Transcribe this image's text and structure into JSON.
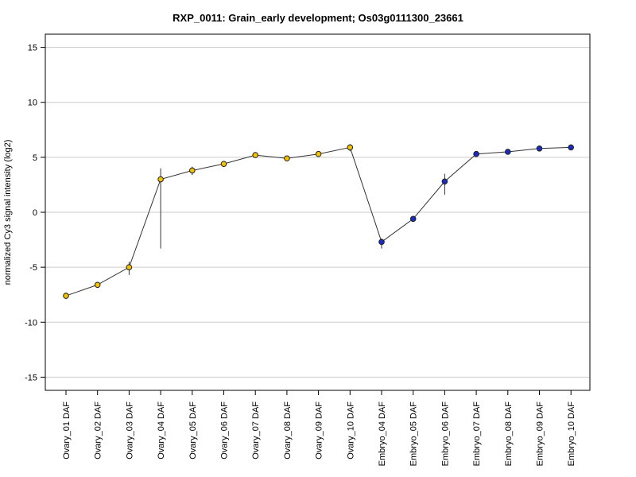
{
  "chart_data": {
    "type": "line",
    "title": "RXP_0011: Grain_early development; Os03g0111300_23661",
    "xlabel": "",
    "ylabel": "normalized Cy3 signal intensity (log2)",
    "ylim": [
      -16.2,
      16.2
    ],
    "yticks": [
      -15,
      -10,
      -5,
      0,
      5,
      10,
      15
    ],
    "grid": true,
    "categories": [
      "Ovary_01 DAF",
      "Ovary_02 DAF",
      "Ovary_03 DAF",
      "Ovary_04 DAF",
      "Ovary_05 DAF",
      "Ovary_06 DAF",
      "Ovary_07 DAF",
      "Ovary_08 DAF",
      "Ovary_09 DAF",
      "Ovary_10 DAF",
      "Embryo_04 DAF",
      "Embryo_05 DAF",
      "Embryo_06 DAF",
      "Embryo_07 DAF",
      "Embryo_08 DAF",
      "Embryo_09 DAF",
      "Embryo_10 DAF"
    ],
    "values": [
      -7.6,
      -6.6,
      -5.0,
      3.0,
      3.8,
      4.4,
      5.2,
      4.9,
      5.3,
      5.9,
      -2.7,
      -0.6,
      2.8,
      5.3,
      5.5,
      5.8,
      5.9
    ],
    "error_low": [
      -7.9,
      -6.8,
      -5.7,
      -3.3,
      3.4,
      4.2,
      4.95,
      4.7,
      5.1,
      5.55,
      -3.3,
      -0.75,
      1.6,
      5.2,
      5.4,
      5.65,
      5.75
    ],
    "error_high": [
      -7.3,
      -6.4,
      -4.5,
      4.0,
      4.15,
      4.6,
      5.4,
      5.1,
      5.5,
      6.2,
      -2.4,
      -0.45,
      3.5,
      5.4,
      5.6,
      5.9,
      6.05
    ],
    "point_colors": [
      "#f2c100",
      "#f2c100",
      "#f2c100",
      "#f2c100",
      "#f2c100",
      "#f2c100",
      "#f2c100",
      "#f2c100",
      "#f2c100",
      "#f2c100",
      "#1a2bbf",
      "#1a2bbf",
      "#1a2bbf",
      "#1a2bbf",
      "#1a2bbf",
      "#1a2bbf",
      "#1a2bbf"
    ],
    "line_color": "#333333",
    "grid_color": "#cccccc"
  }
}
